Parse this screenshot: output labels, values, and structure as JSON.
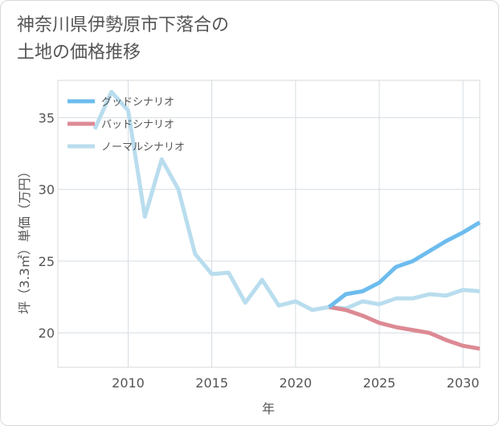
{
  "title_lines": [
    "神奈川県伊勢原市下落合の",
    "土地の価格推移"
  ],
  "chart_data": {
    "type": "line",
    "xlabel": "年",
    "ylabel": "坪（3.3㎡）単価（万円）",
    "xlim": [
      2005.8,
      2031
    ],
    "ylim": [
      17.6,
      37.6
    ],
    "x_ticks": [
      2010,
      2015,
      2020,
      2025,
      2030
    ],
    "y_ticks": [
      20,
      25,
      30,
      35
    ],
    "grid": true,
    "legend_position": "top-left",
    "series": [
      {
        "name": "グッドシナリオ",
        "color": "#6cbcee",
        "x": [
          2022,
          2023,
          2024,
          2025,
          2026,
          2027,
          2028,
          2029,
          2030,
          2031
        ],
        "y": [
          21.8,
          22.7,
          22.9,
          23.5,
          24.6,
          25.0,
          25.7,
          26.4,
          27.0,
          27.7
        ]
      },
      {
        "name": "バッドシナリオ",
        "color": "#dc8a94",
        "x": [
          2022,
          2023,
          2024,
          2025,
          2026,
          2027,
          2028,
          2029,
          2030,
          2031
        ],
        "y": [
          21.8,
          21.6,
          21.2,
          20.7,
          20.4,
          20.2,
          20.0,
          19.5,
          19.1,
          18.9
        ]
      },
      {
        "name": "ノーマルシナリオ",
        "color": "#b9ddee",
        "x": [
          2008,
          2009,
          2010,
          2011,
          2012,
          2013,
          2014,
          2015,
          2016,
          2017,
          2018,
          2019,
          2020,
          2021,
          2022,
          2023,
          2024,
          2025,
          2026,
          2027,
          2028,
          2029,
          2030,
          2031
        ],
        "y": [
          34.2,
          36.8,
          35.5,
          28.1,
          32.1,
          30.0,
          25.5,
          24.1,
          24.2,
          22.1,
          23.7,
          21.9,
          22.2,
          21.6,
          21.8,
          21.7,
          22.2,
          22.0,
          22.4,
          22.4,
          22.7,
          22.6,
          23.0,
          22.9
        ]
      }
    ]
  }
}
